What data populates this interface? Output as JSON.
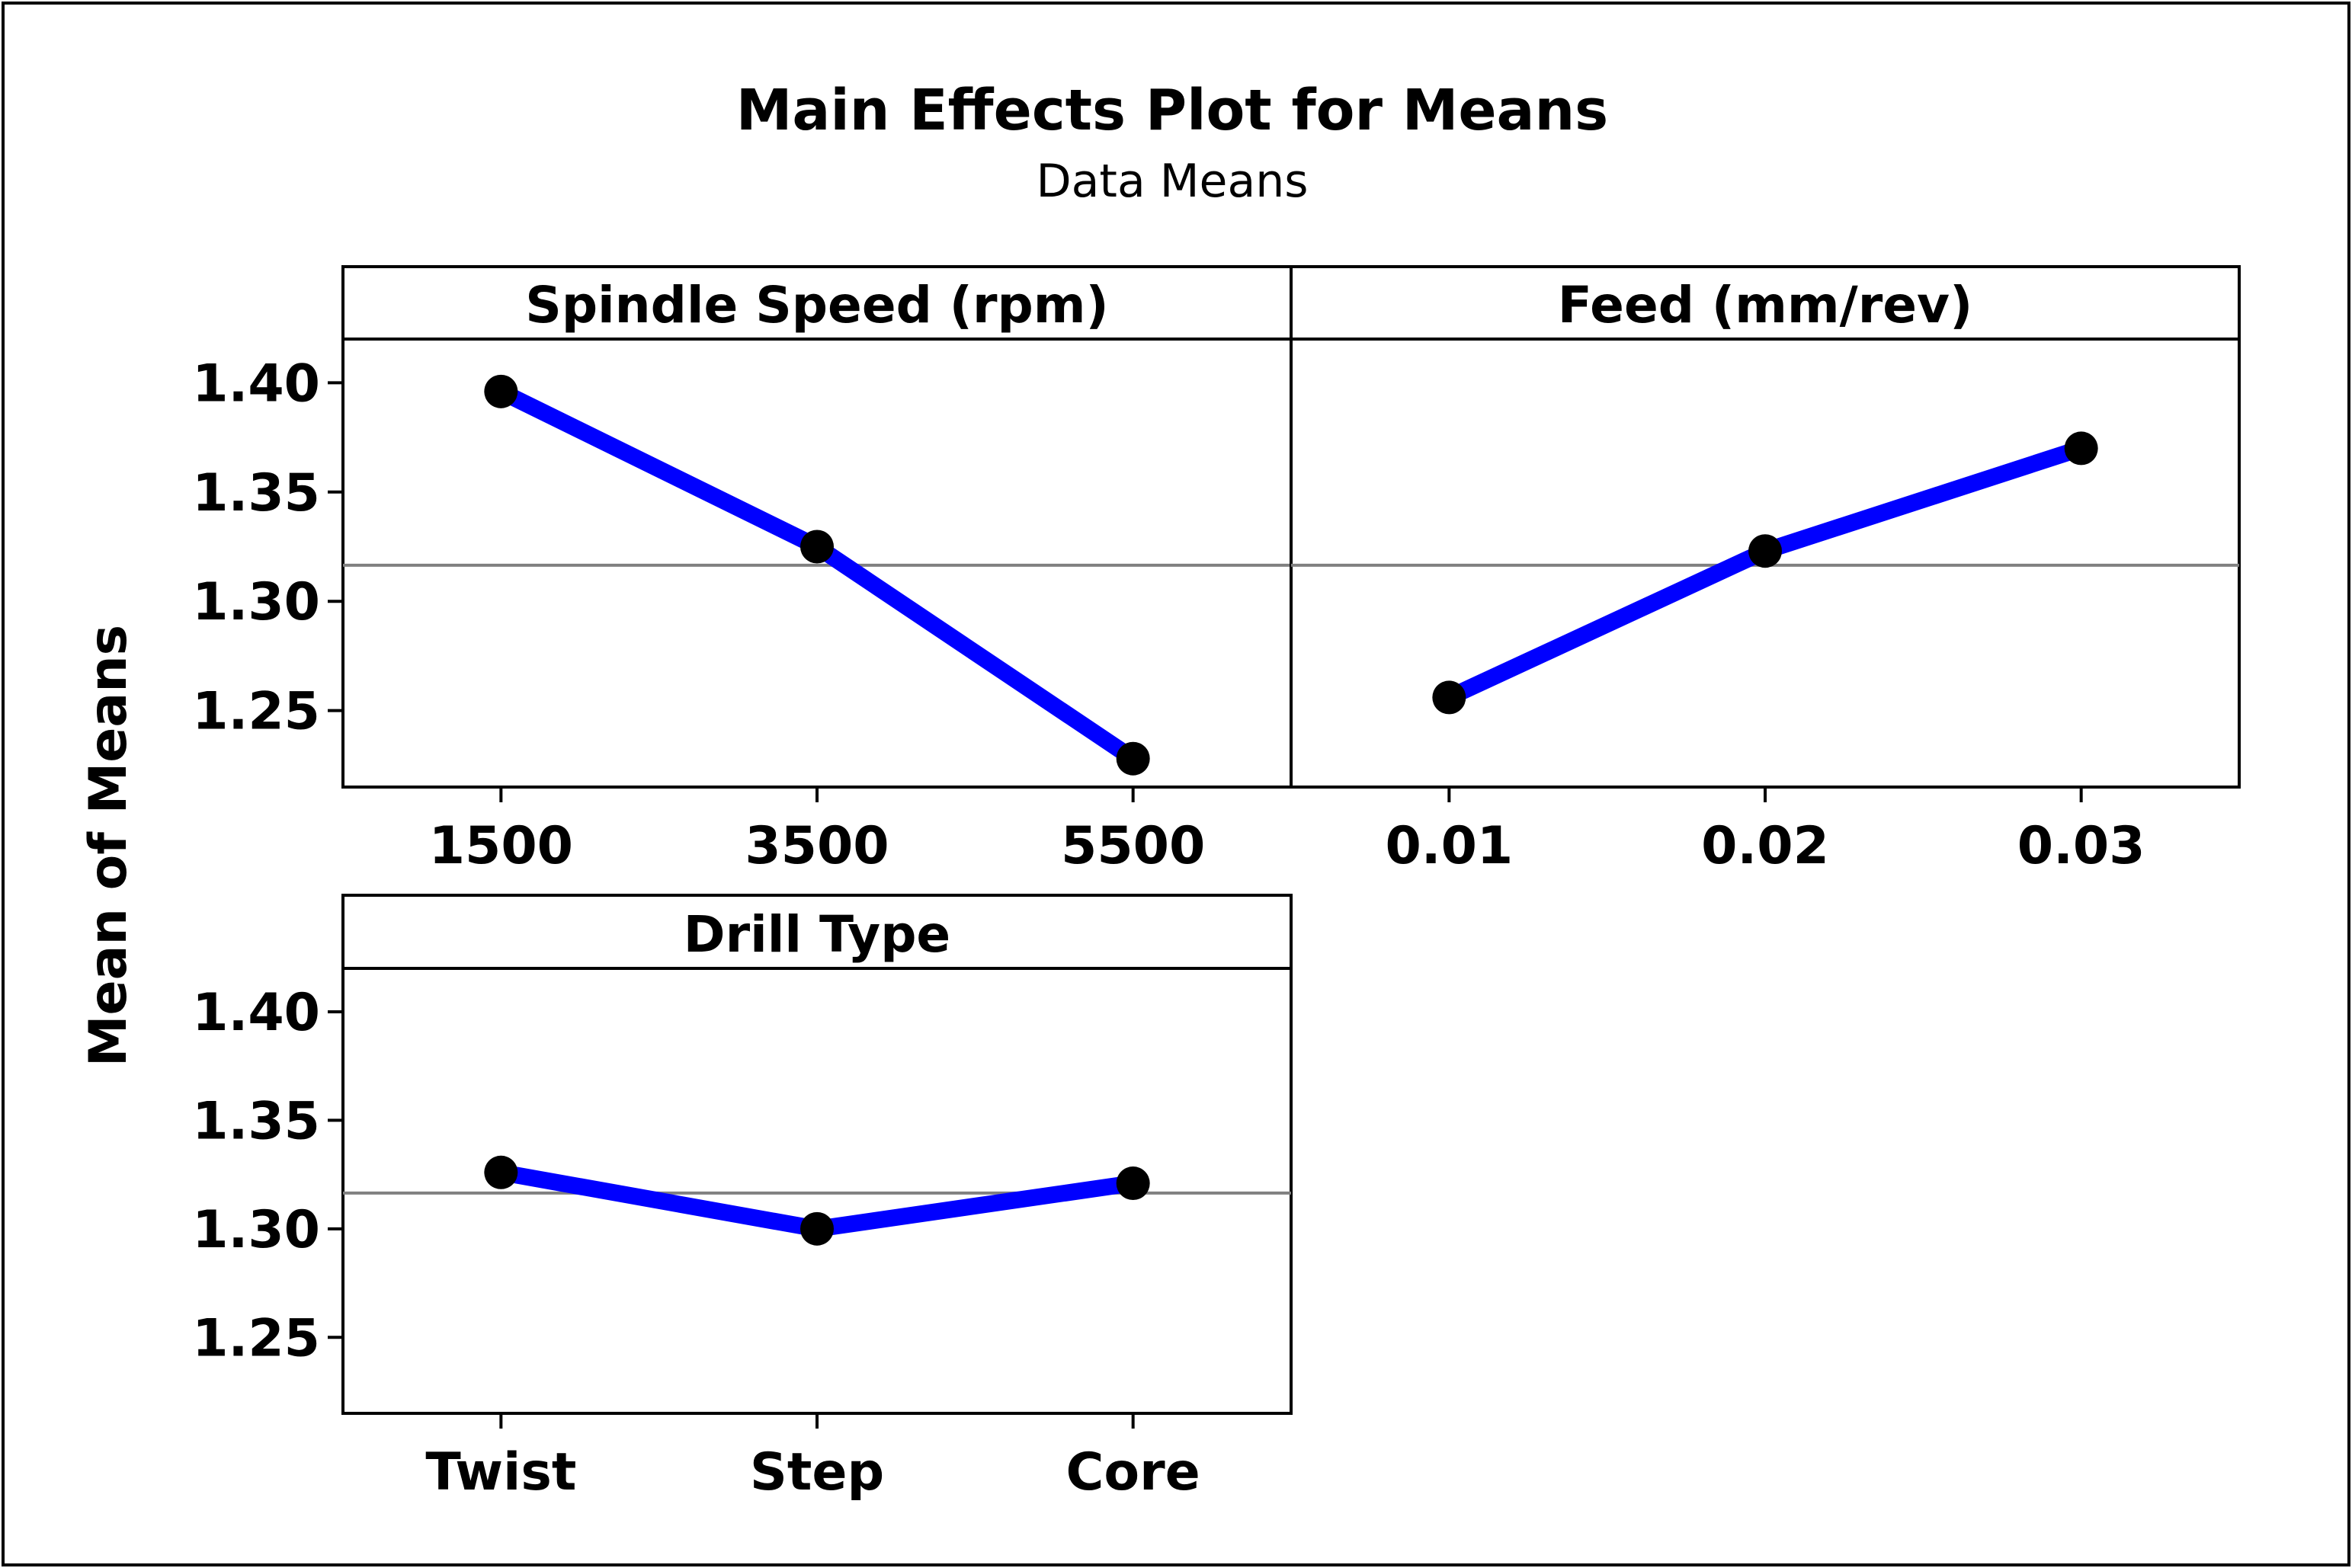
{
  "chart_data": {
    "type": "line",
    "title": "Main Effects Plot for Means",
    "subtitle": "Data Means",
    "ylabel": "Mean of Means",
    "ylim": [
      1.215,
      1.42
    ],
    "yticks": [
      "1.40",
      "1.35",
      "1.30",
      "1.25"
    ],
    "reference_mean": 1.3165,
    "series_color": "#0000FF",
    "marker_color": "#000000",
    "reference_color": "#808080",
    "panels": [
      {
        "name": "Spindle Speed (rpm)",
        "categories": [
          "1500",
          "3500",
          "5500"
        ],
        "values": [
          1.396,
          1.325,
          1.228
        ]
      },
      {
        "name": "Feed (mm/rev)",
        "categories": [
          "0.01",
          "0.02",
          "0.03"
        ],
        "values": [
          1.256,
          1.323,
          1.37
        ]
      },
      {
        "name": "Drill Type",
        "categories": [
          "Twist",
          "Step",
          "Core"
        ],
        "values": [
          1.326,
          1.3,
          1.321
        ]
      }
    ]
  }
}
